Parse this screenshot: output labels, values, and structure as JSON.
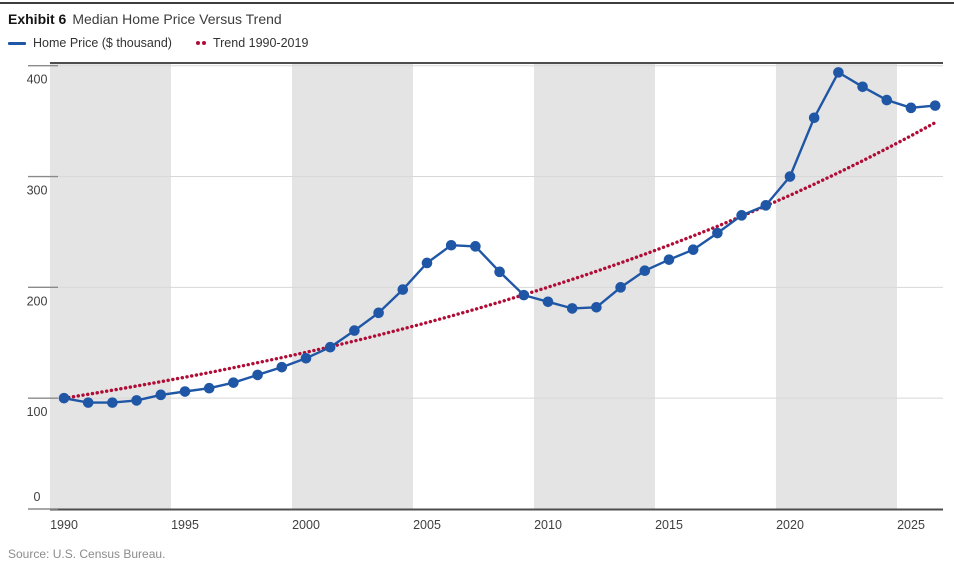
{
  "header": {
    "exhibit_label": "Exhibit 6",
    "title": "Median Home Price Versus Trend"
  },
  "legend": [
    {
      "label": "Home Price ($ thousand)",
      "color": "#1f57a6",
      "style": "solid-line"
    },
    {
      "label": "Trend 1990-2019",
      "color": "#b00c36",
      "style": "dotted"
    }
  ],
  "source": "Source: U.S. Census Bureau.",
  "colors": {
    "home_price_blue": "#1f57a6",
    "trend_red": "#b00c36",
    "band_gray": "#e4e4e4",
    "gridline_gray": "#d8d8d8",
    "axis_dark": "#4d4d4d",
    "tick_gray": "#8a8a8a",
    "label_gray": "#3f3f3f"
  },
  "chart_data": {
    "type": "line",
    "title": "Median Home Price Versus Trend",
    "xlabel": "",
    "ylabel": "",
    "x": [
      1990,
      1991,
      1992,
      1993,
      1994,
      1995,
      1996,
      1997,
      1998,
      1999,
      2000,
      2001,
      2002,
      2003,
      2004,
      2005,
      2006,
      2007,
      2008,
      2009,
      2010,
      2011,
      2012,
      2013,
      2014,
      2015,
      2016,
      2017,
      2018,
      2019,
      2020,
      2021,
      2022,
      2023,
      2024,
      2025,
      2026
    ],
    "series": [
      {
        "name": "Home Price ($ thousand)",
        "marker": "circle",
        "line": "solid",
        "values": [
          100,
          96,
          96,
          98,
          103,
          106,
          109,
          114,
          121,
          128,
          136,
          146,
          161,
          177,
          198,
          222,
          238,
          237,
          214,
          193,
          187,
          181,
          182,
          200,
          215,
          225,
          234,
          249,
          265,
          274,
          300,
          353,
          394,
          381,
          369,
          362,
          364
        ]
      },
      {
        "name": "Trend 1990-2019",
        "marker": "none",
        "line": "dotted",
        "values": [
          100,
          103.5,
          107.2,
          111.0,
          114.9,
          118.9,
          123.1,
          127.5,
          132.0,
          136.6,
          141.4,
          146.4,
          151.6,
          156.9,
          162.5,
          168.2,
          174.2,
          180.3,
          186.7,
          193.3,
          200.1,
          207.2,
          214.5,
          222.1,
          229.9,
          238.0,
          246.4,
          255.1,
          264.2,
          273.5,
          283.1,
          293.1,
          303.5,
          314.2,
          325.3,
          336.8,
          348.7
        ]
      }
    ],
    "y_ticks": [
      0,
      100,
      200,
      300,
      400
    ],
    "x_ticks": [
      1990,
      1995,
      2000,
      2005,
      2010,
      2015,
      2020,
      2025
    ],
    "ylim": [
      0,
      402
    ],
    "x_range": [
      1989.42,
      2026.33
    ],
    "grid": "horizontal",
    "legend_position": "top-left",
    "shaded_bands_years": [
      [
        1989.42,
        1994.42
      ],
      [
        1999.42,
        2004.42
      ],
      [
        2009.42,
        2014.42
      ],
      [
        2019.42,
        2024.42
      ]
    ]
  }
}
